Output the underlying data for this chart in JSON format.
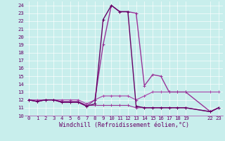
{
  "xlabel": "Windchill (Refroidissement éolien,°C)",
  "xlim": [
    -0.5,
    23.5
  ],
  "ylim": [
    10,
    24.5
  ],
  "yticks": [
    10,
    11,
    12,
    13,
    14,
    15,
    16,
    17,
    18,
    19,
    20,
    21,
    22,
    23,
    24
  ],
  "xticks": [
    0,
    1,
    2,
    3,
    4,
    5,
    6,
    7,
    8,
    9,
    10,
    11,
    12,
    13,
    14,
    15,
    16,
    17,
    18,
    19,
    22,
    23
  ],
  "bg_color": "#c8eeec",
  "grid_color": "#aad8d8",
  "series": [
    {
      "x": [
        0,
        1,
        2,
        3,
        4,
        5,
        6,
        7,
        8,
        9,
        10,
        11,
        12,
        13,
        14,
        15,
        16,
        17,
        18,
        19,
        22,
        23
      ],
      "y": [
        12,
        12,
        12,
        12,
        12,
        12,
        12,
        11.5,
        12,
        12.5,
        12.5,
        12.5,
        12.5,
        12,
        12.5,
        13,
        13,
        13,
        13,
        13,
        13,
        13
      ],
      "color": "#aa44aa",
      "lw": 0.8,
      "ls": "-",
      "marker": "+"
    },
    {
      "x": [
        0,
        1,
        2,
        3,
        4,
        5,
        6,
        7,
        8,
        9,
        10,
        11,
        12,
        13,
        14,
        15,
        16,
        17,
        18,
        19,
        22,
        23
      ],
      "y": [
        12,
        11.8,
        12,
        12,
        11.8,
        11.8,
        11.8,
        11.3,
        11.3,
        11.3,
        11.3,
        11.3,
        11.3,
        11.0,
        11.0,
        11.0,
        11.0,
        11.0,
        11.0,
        11.0,
        10.5,
        11.0
      ],
      "color": "#993399",
      "lw": 0.8,
      "ls": "-",
      "marker": "+"
    },
    {
      "x": [
        0,
        1,
        2,
        3,
        4,
        5,
        6,
        7,
        8,
        9,
        10,
        11,
        12,
        13,
        14,
        15,
        16,
        17,
        18,
        19,
        22,
        23
      ],
      "y": [
        12,
        11.8,
        12,
        12,
        11.7,
        11.7,
        11.7,
        11.2,
        12.0,
        19.0,
        24.0,
        23.2,
        23.2,
        23.0,
        13.8,
        15.2,
        15.0,
        13.0,
        13.0,
        13.0,
        10.5,
        11.0
      ],
      "color": "#993399",
      "lw": 1.0,
      "ls": "-",
      "marker": "+"
    },
    {
      "x": [
        0,
        1,
        2,
        3,
        4,
        5,
        6,
        7,
        8,
        9,
        10,
        11,
        12,
        13,
        14,
        15,
        16,
        17,
        18,
        19,
        22,
        23
      ],
      "y": [
        12,
        11.8,
        12,
        12,
        11.7,
        11.7,
        11.7,
        11.2,
        11.5,
        22.2,
        24.0,
        23.2,
        23.2,
        11.2,
        11.0,
        11.0,
        11.0,
        11.0,
        11.0,
        11.0,
        10.5,
        11.0
      ],
      "color": "#660066",
      "lw": 1.0,
      "ls": "-",
      "marker": "+"
    }
  ]
}
